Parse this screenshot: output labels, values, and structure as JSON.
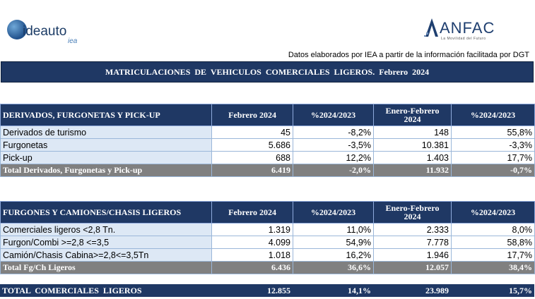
{
  "logos": {
    "ideauto": {
      "name": "ideauto",
      "sub": "iea"
    },
    "anfac": {
      "name": "ANFAC",
      "sub": "La Movilidad del Futuro"
    }
  },
  "source_note": "Datos elaborados por IEA a partir de la información facilitada por DGT",
  "main_title": "MATRICULACIONES DE VEHICULOS COMERCIALES LIGEROS. Febrero 2024",
  "table1": {
    "headers": [
      "DERIVADOS, FURGONETAS Y PICK-UP",
      "Febrero 2024",
      "%2024/2023",
      "Enero-Febrero",
      "2024",
      "%2024/2023"
    ],
    "rows": [
      [
        "Derivados de turismo",
        "45",
        "-8,2%",
        "148",
        "55,8%"
      ],
      [
        "Furgonetas",
        "5.686",
        "-3,5%",
        "10.381",
        "-3,3%"
      ],
      [
        "Pick-up",
        "688",
        "12,2%",
        "1.403",
        "17,7%"
      ]
    ],
    "total": [
      "Total Derivados, Furgonetas y Pick-up",
      "6.419",
      "-2,0%",
      "11.932",
      "-0,7%"
    ]
  },
  "table2": {
    "headers": [
      "FURGONES Y CAMIONES/CHASIS LIGEROS",
      "Febrero 2024",
      "%2024/2023",
      "Enero-Febrero",
      "2024",
      "%2024/2023"
    ],
    "rows": [
      [
        "Comerciales ligeros <2,8 Tn.",
        "1.319",
        "11,0%",
        "2.333",
        "8,0%"
      ],
      [
        "Furgon/Combi >=2,8 <=3,5",
        "4.099",
        "54,9%",
        "7.778",
        "58,8%"
      ],
      [
        "Camión/Chasis Cabina>=2,8<=3,5Tn",
        "1.018",
        "16,2%",
        "1.946",
        "17,7%"
      ]
    ],
    "total": [
      "Total Fg/Ch Ligeros",
      "6.436",
      "36,6%",
      "12.057",
      "38,4%"
    ]
  },
  "grand_total": [
    "TOTAL COMERCIALES LIGEROS",
    "12.855",
    "14,1%",
    "23.989",
    "15,7%"
  ],
  "colors": {
    "header_navy": "#1f3864",
    "total_gray": "#808080",
    "label_bg": "#dde8f5"
  }
}
